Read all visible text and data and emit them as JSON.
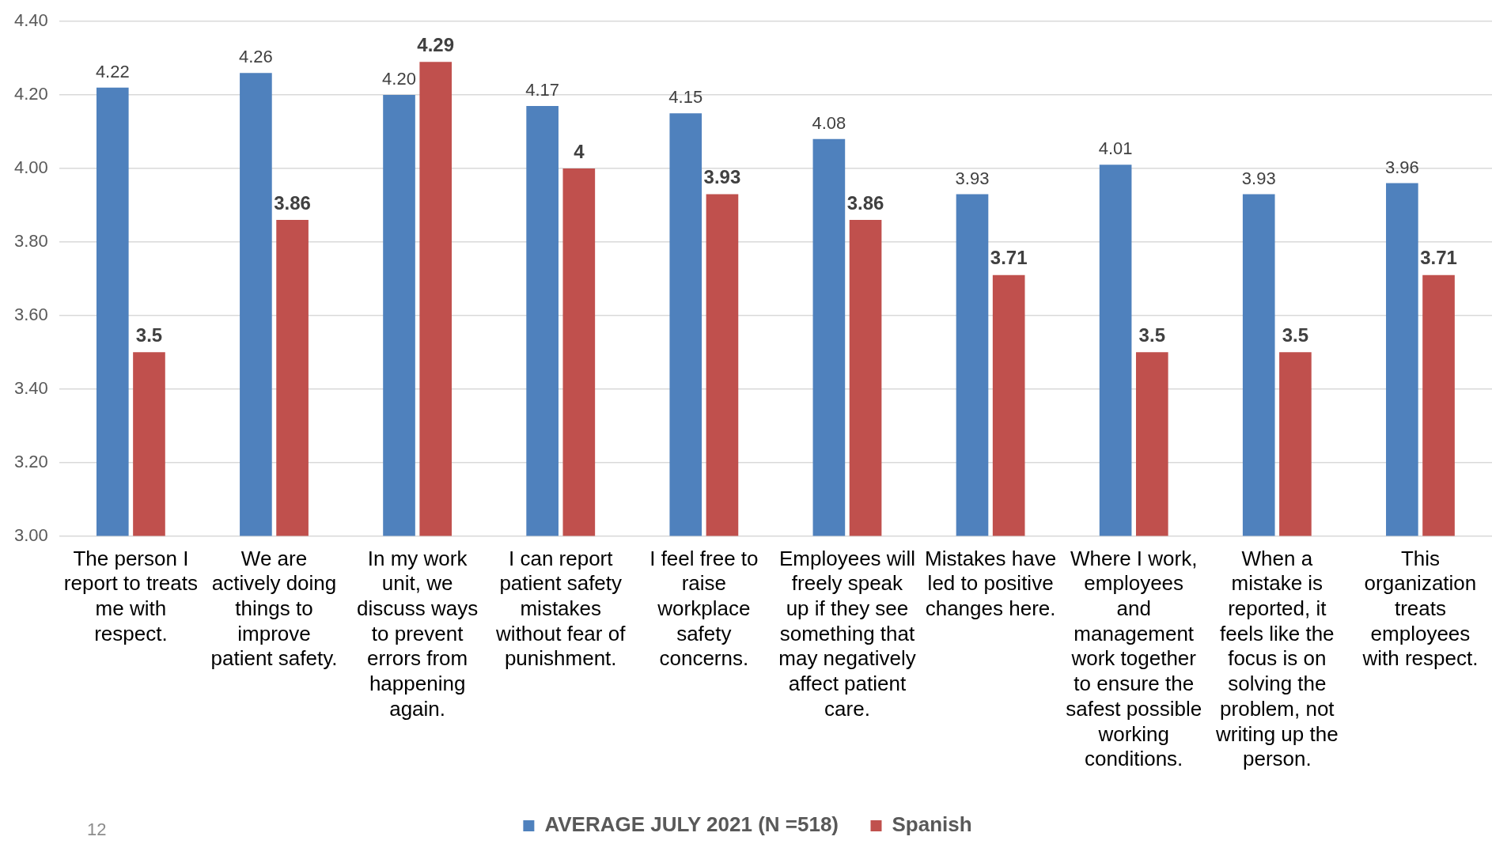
{
  "chart_data": {
    "type": "bar",
    "categories": [
      "The person I report to treats me with respect.",
      "We are actively doing things to improve patient safety.",
      "In my work unit, we discuss ways to prevent errors from happening again.",
      "I can report patient safety mistakes without fear of punishment.",
      "I feel free to raise workplace safety concerns.",
      "Employees will freely speak up if they see something that may negatively affect patient care.",
      "Mistakes have led to positive changes here.",
      "Where I work, employees and management work together to ensure the safest possible working conditions.",
      "When a mistake is reported, it feels like the focus is on solving the problem, not writing up the person.",
      "This organization treats employees with respect."
    ],
    "series": [
      {
        "name": "AVERAGE JULY 2021 (N =518)",
        "color": "#4f81bd",
        "values": [
          4.22,
          4.26,
          4.2,
          4.17,
          4.15,
          4.08,
          3.93,
          4.01,
          3.93,
          3.96
        ],
        "value_labels": [
          "4.22",
          "4.26",
          "4.20",
          "4.17",
          "4.15",
          "4.08",
          "3.93",
          "4.01",
          "3.93",
          "3.96"
        ]
      },
      {
        "name": "Spanish",
        "color": "#c0504d",
        "values": [
          3.5,
          3.86,
          4.29,
          4,
          3.93,
          3.86,
          3.71,
          3.5,
          3.5,
          3.71
        ],
        "value_labels": [
          "3.5",
          "3.86",
          "4.29",
          "4",
          "3.93",
          "3.86",
          "3.71",
          "3.5",
          "3.5",
          "3.71"
        ]
      }
    ],
    "ylim": [
      3,
      4.4
    ],
    "yticks": [
      {
        "value": 3,
        "label": "3.00"
      },
      {
        "value": 3.2,
        "label": "3.20"
      },
      {
        "value": 3.4,
        "label": "3.40"
      },
      {
        "value": 3.6,
        "label": "3.60"
      },
      {
        "value": 3.8,
        "label": "3.80"
      },
      {
        "value": 4,
        "label": "4.00"
      },
      {
        "value": 4.2,
        "label": "4.20"
      },
      {
        "value": 4.4,
        "label": "4.40"
      }
    ],
    "grid": "y",
    "legend": "bottom",
    "annotations": [
      "12"
    ]
  }
}
